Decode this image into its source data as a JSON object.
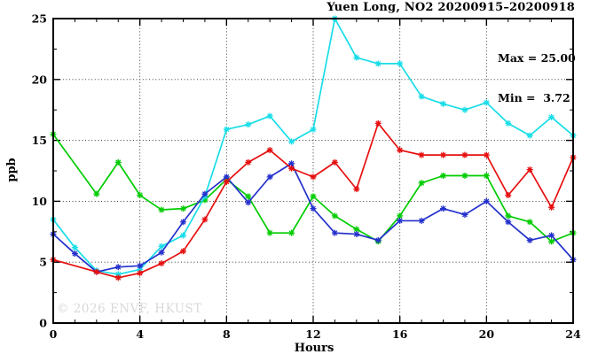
{
  "title": "Yuen Long, NO2 20200915–20200918",
  "annotation": {
    "max": "Max = 25.00",
    "min": "Min =  3.72"
  },
  "watermark": "© 2026 ENVF, HKUST",
  "chart_data": {
    "type": "line",
    "title": "Yuen Long, NO2 20200915–20200918",
    "xlabel": "Hours",
    "ylabel": "ppb",
    "xlim": [
      0,
      24
    ],
    "ylim": [
      0,
      25
    ],
    "x_major_ticks": [
      0,
      4,
      8,
      12,
      16,
      20,
      24
    ],
    "x_minor_step": 1,
    "y_major_ticks": [
      0,
      5,
      10,
      15,
      20,
      25
    ],
    "y_minor_step": 2.5,
    "grid": {
      "horizontal_at": [
        5,
        10,
        15,
        20
      ],
      "vertical_at": [
        4,
        8,
        12,
        16,
        20
      ],
      "style": "dotted"
    },
    "legend": "none",
    "marker": "asterisk",
    "stats": {
      "max": 25.0,
      "min": 3.72
    },
    "x": [
      0,
      1,
      2,
      3,
      4,
      5,
      6,
      7,
      8,
      9,
      10,
      11,
      12,
      13,
      14,
      15,
      16,
      17,
      18,
      19,
      20,
      21,
      22,
      23,
      24
    ],
    "series": [
      {
        "name": "green",
        "color": "#00cc00",
        "values": [
          15.5,
          null,
          10.6,
          13.2,
          10.5,
          9.3,
          9.4,
          10.1,
          11.8,
          10.4,
          7.4,
          7.4,
          10.4,
          8.8,
          7.7,
          6.7,
          8.8,
          11.5,
          12.1,
          12.1,
          12.1,
          8.8,
          8.3,
          6.7,
          7.4
        ]
      },
      {
        "name": "cyan",
        "color": "#17dde8",
        "values": [
          8.5,
          6.2,
          4.3,
          4.0,
          4.4,
          6.3,
          7.2,
          10.4,
          15.9,
          16.3,
          17.0,
          14.9,
          15.9,
          25.0,
          21.8,
          21.3,
          21.3,
          18.6,
          18.0,
          17.5,
          18.1,
          16.4,
          15.4,
          16.9,
          15.4
        ]
      },
      {
        "name": "blue",
        "color": "#2431cc",
        "values": [
          7.3,
          5.7,
          4.2,
          4.6,
          4.7,
          5.8,
          8.3,
          10.6,
          12.0,
          9.9,
          12.0,
          13.1,
          9.4,
          7.4,
          7.3,
          6.8,
          8.4,
          8.4,
          9.4,
          8.9,
          10.0,
          8.3,
          6.8,
          7.2,
          5.2
        ]
      },
      {
        "name": "red",
        "color": "#e60e0e",
        "values": [
          5.2,
          null,
          4.2,
          3.72,
          4.1,
          4.9,
          5.9,
          8.5,
          11.6,
          13.2,
          14.2,
          12.7,
          12.0,
          13.2,
          11.0,
          16.4,
          14.2,
          13.8,
          13.8,
          13.8,
          13.8,
          10.5,
          12.6,
          9.5,
          13.6
        ]
      }
    ]
  }
}
